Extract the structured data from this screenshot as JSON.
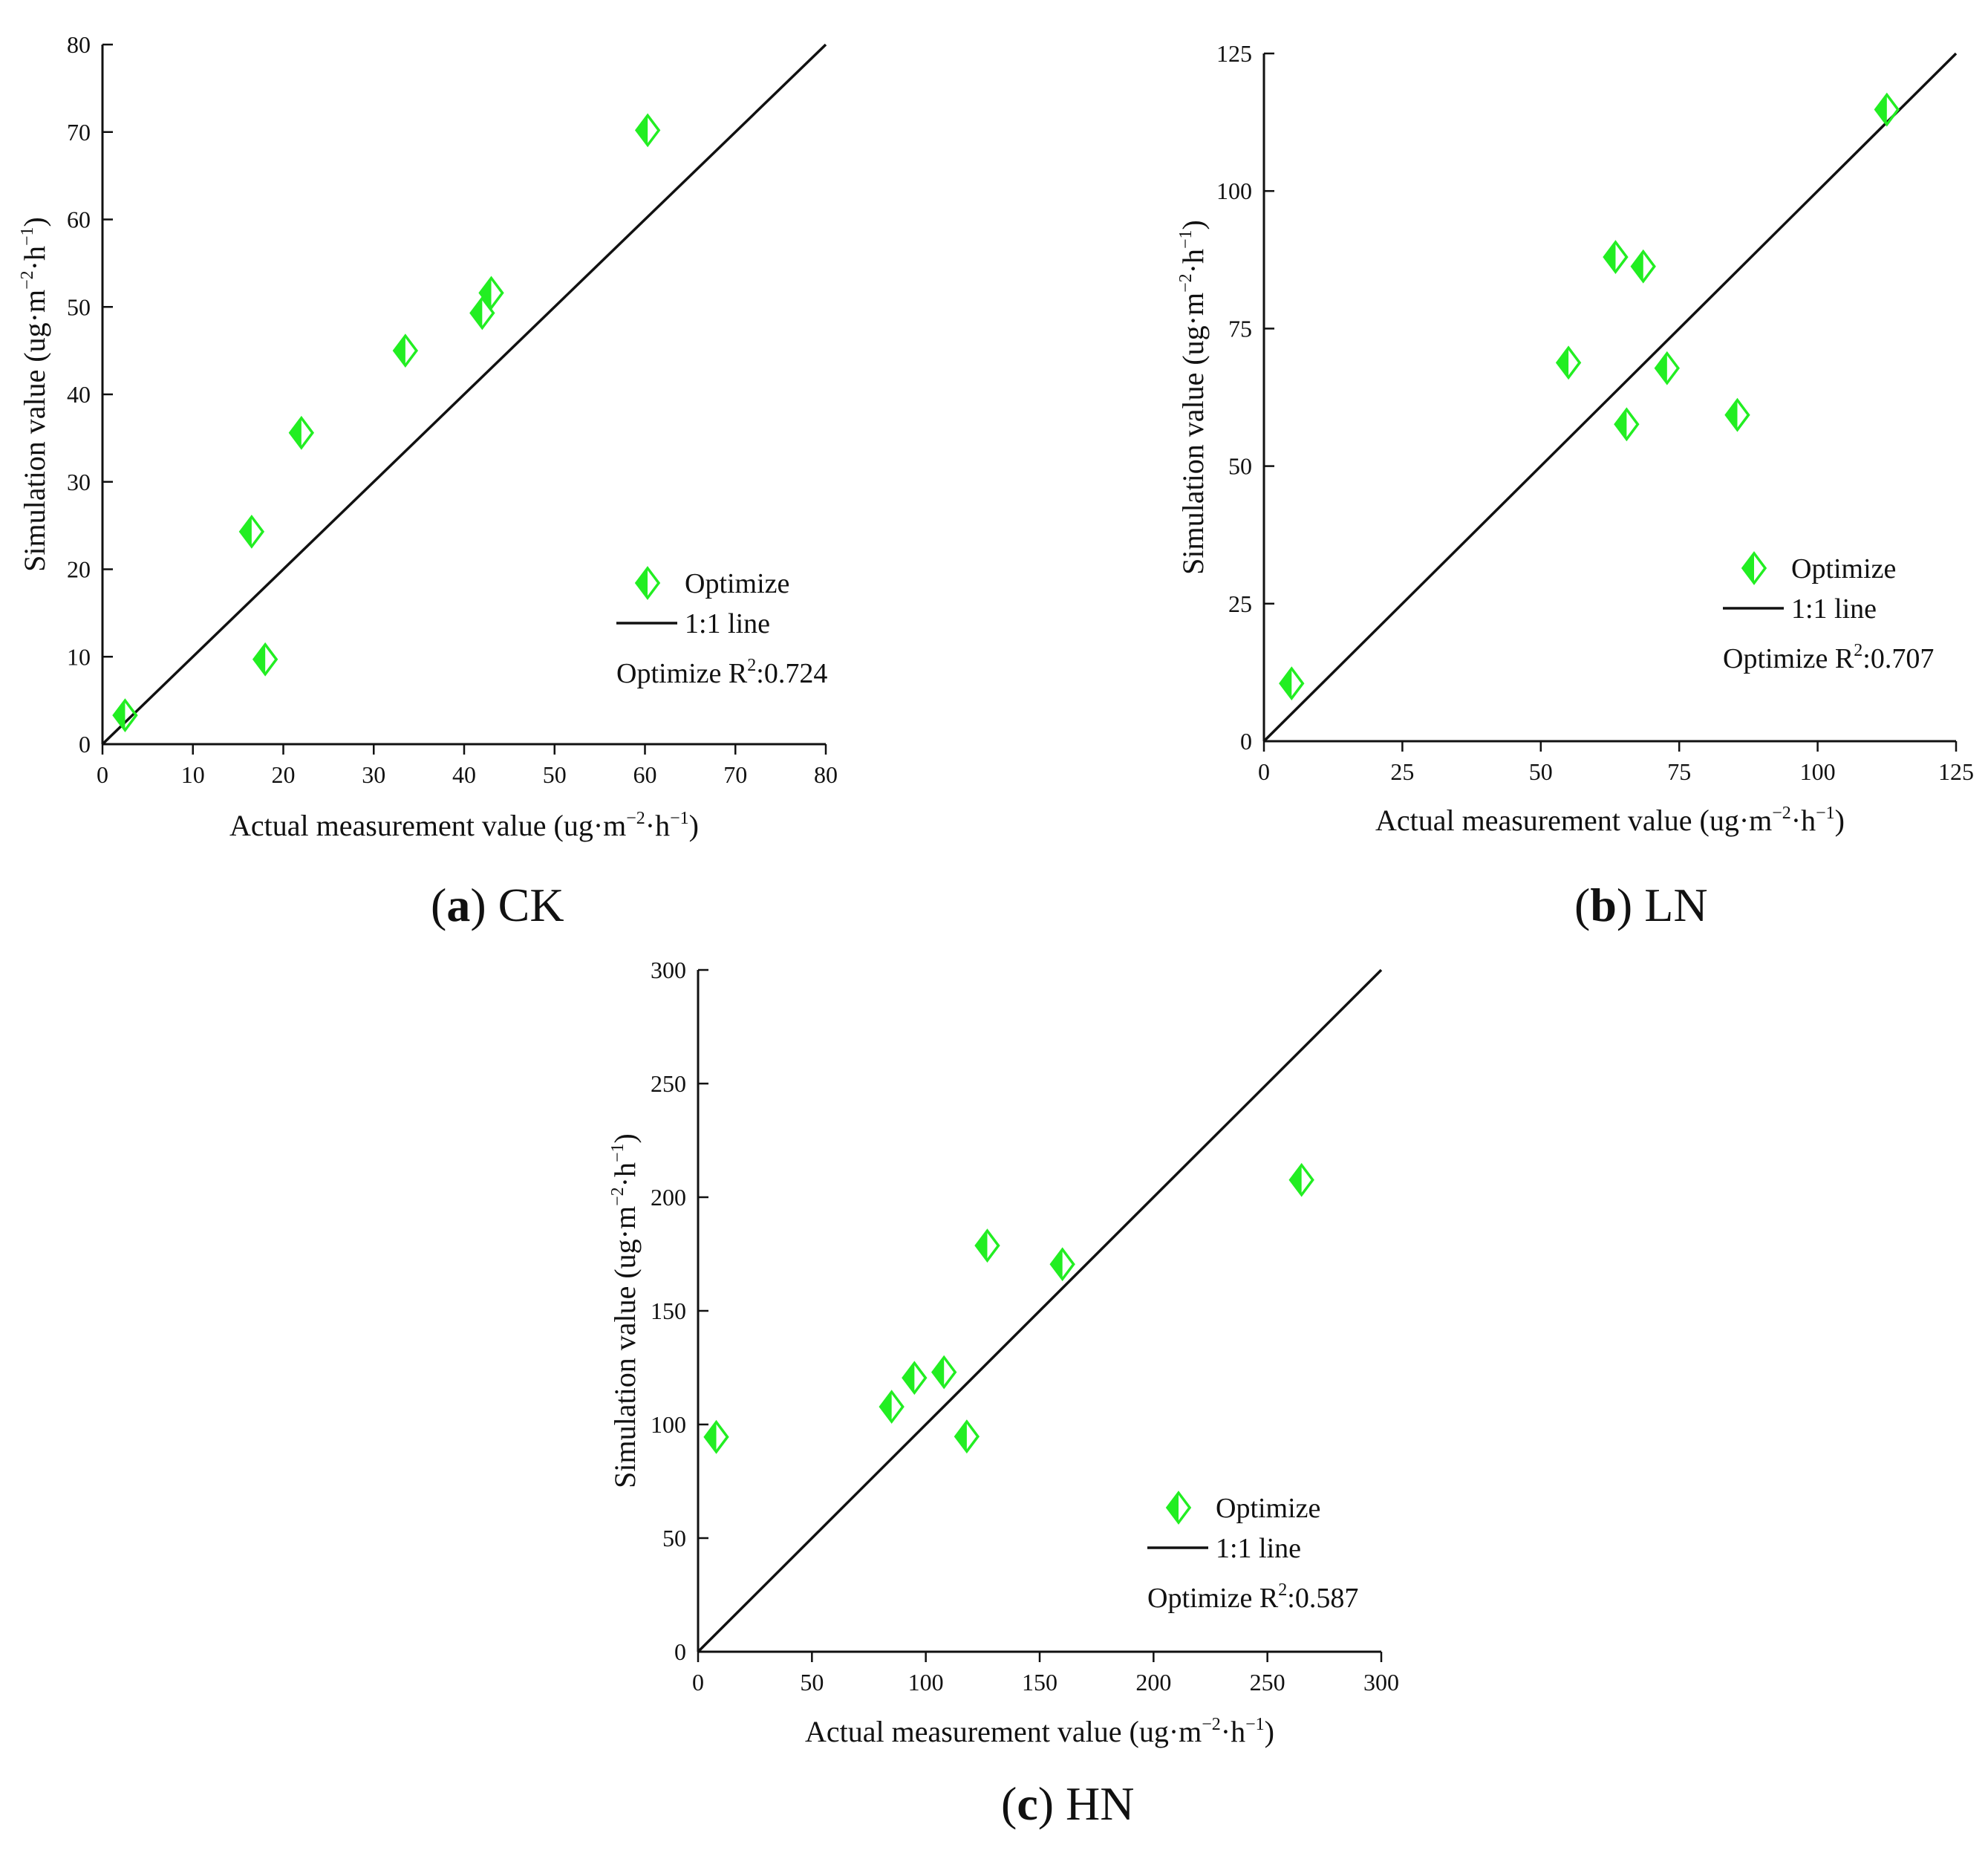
{
  "colors": {
    "marker": "#22ee22",
    "line": "#111111",
    "axis": "#111111",
    "background": "#ffffff"
  },
  "marker_icon": "half-filled-diamond",
  "chart_data": [
    {
      "id": "ck",
      "type": "scatter",
      "caption": {
        "letter": "a",
        "label": "CK"
      },
      "xlabel": "Actual measurement value",
      "ylabel": "Simulation value",
      "unit": {
        "base": "ug·m",
        "exp1": "−2",
        "mid": "·h",
        "exp2": "−1"
      },
      "xlim": [
        0,
        80
      ],
      "ylim": [
        0,
        80
      ],
      "xticks": [
        0,
        10,
        20,
        30,
        40,
        50,
        60,
        70,
        80
      ],
      "yticks": [
        0,
        10,
        20,
        30,
        40,
        50,
        60,
        70,
        80
      ],
      "x_tick_labels": [
        "0",
        "10",
        "20",
        "30",
        "40",
        "50",
        "60",
        "70",
        "80"
      ],
      "y_tick_labels": [
        "0",
        "10",
        "20",
        "30",
        "40",
        "50",
        "60",
        "70",
        "80"
      ],
      "series": [
        {
          "name": "Optimize",
          "x": [
            2.5,
            16.5,
            18,
            22,
            33.5,
            42,
            43,
            60.3
          ],
          "y": [
            3.3,
            24.3,
            9.7,
            35.6,
            45,
            49.3,
            51.6,
            70.2
          ]
        }
      ],
      "reference_line": {
        "name": "1:1 line",
        "from": [
          0,
          0
        ],
        "to": [
          80,
          80
        ]
      },
      "legend": {
        "position": "lower-right",
        "marker_label": "Optimize",
        "line_label": "1:1 line"
      },
      "r2": {
        "prefix": "Optimize R",
        "sup": "2",
        "suffix": ":0.724"
      }
    },
    {
      "id": "ln",
      "type": "scatter",
      "caption": {
        "letter": "b",
        "label": "LN"
      },
      "xlabel": "Actual measurement value",
      "ylabel": "Simulation value",
      "unit": {
        "base": "ug·m",
        "exp1": "−2",
        "mid": "·h",
        "exp2": "−1"
      },
      "xlim": [
        0,
        125
      ],
      "ylim": [
        0,
        125
      ],
      "xticks": [
        0,
        25,
        50,
        75,
        100,
        125
      ],
      "yticks": [
        0,
        25,
        50,
        75,
        100,
        125
      ],
      "x_tick_labels": [
        "0",
        "25",
        "50",
        "75",
        "100",
        "125"
      ],
      "y_tick_labels": [
        "0",
        "25",
        "50",
        "75",
        "100",
        "125"
      ],
      "series": [
        {
          "name": "Optimize",
          "x": [
            5,
            55,
            63.5,
            65.5,
            68.5,
            72.8,
            85.5,
            112.5
          ],
          "y": [
            10.5,
            68.8,
            88,
            57.6,
            86.3,
            67.8,
            59.3,
            114.8
          ]
        }
      ],
      "reference_line": {
        "name": "1:1 line",
        "from": [
          0,
          0
        ],
        "to": [
          125,
          125
        ]
      },
      "legend": {
        "position": "lower-right",
        "marker_label": "Optimize",
        "line_label": "1:1 line"
      },
      "r2": {
        "prefix": "Optimize R",
        "sup": "2",
        "suffix": ":0.707"
      }
    },
    {
      "id": "hn",
      "type": "scatter",
      "caption": {
        "letter": "c",
        "label": "HN"
      },
      "xlabel": "Actual measurement value",
      "ylabel": "Simulation value",
      "unit": {
        "base": "ug·m",
        "exp1": "−2",
        "mid": "·h",
        "exp2": "−1"
      },
      "xlim": [
        0,
        300
      ],
      "ylim": [
        0,
        300
      ],
      "xticks": [
        0,
        50,
        100,
        150,
        200,
        250,
        300
      ],
      "yticks": [
        0,
        50,
        100,
        150,
        200,
        250,
        300
      ],
      "x_tick_labels": [
        "0",
        "50",
        "100",
        "150",
        "200",
        "250",
        "300"
      ],
      "y_tick_labels": [
        "0",
        "50",
        "100",
        "150",
        "200",
        "250",
        "300"
      ],
      "series": [
        {
          "name": "Optimize",
          "x": [
            8,
            85,
            95,
            108,
            118,
            127,
            160,
            265
          ],
          "y": [
            94.5,
            107.8,
            120.5,
            123,
            94.7,
            178.7,
            170.5,
            207.6
          ]
        }
      ],
      "reference_line": {
        "name": "1:1 line",
        "from": [
          0,
          0
        ],
        "to": [
          300,
          300
        ]
      },
      "legend": {
        "position": "lower-right",
        "marker_label": "Optimize",
        "line_label": "1:1 line"
      },
      "r2": {
        "prefix": "Optimize R",
        "sup": "2",
        "suffix": ":0.587"
      }
    }
  ]
}
